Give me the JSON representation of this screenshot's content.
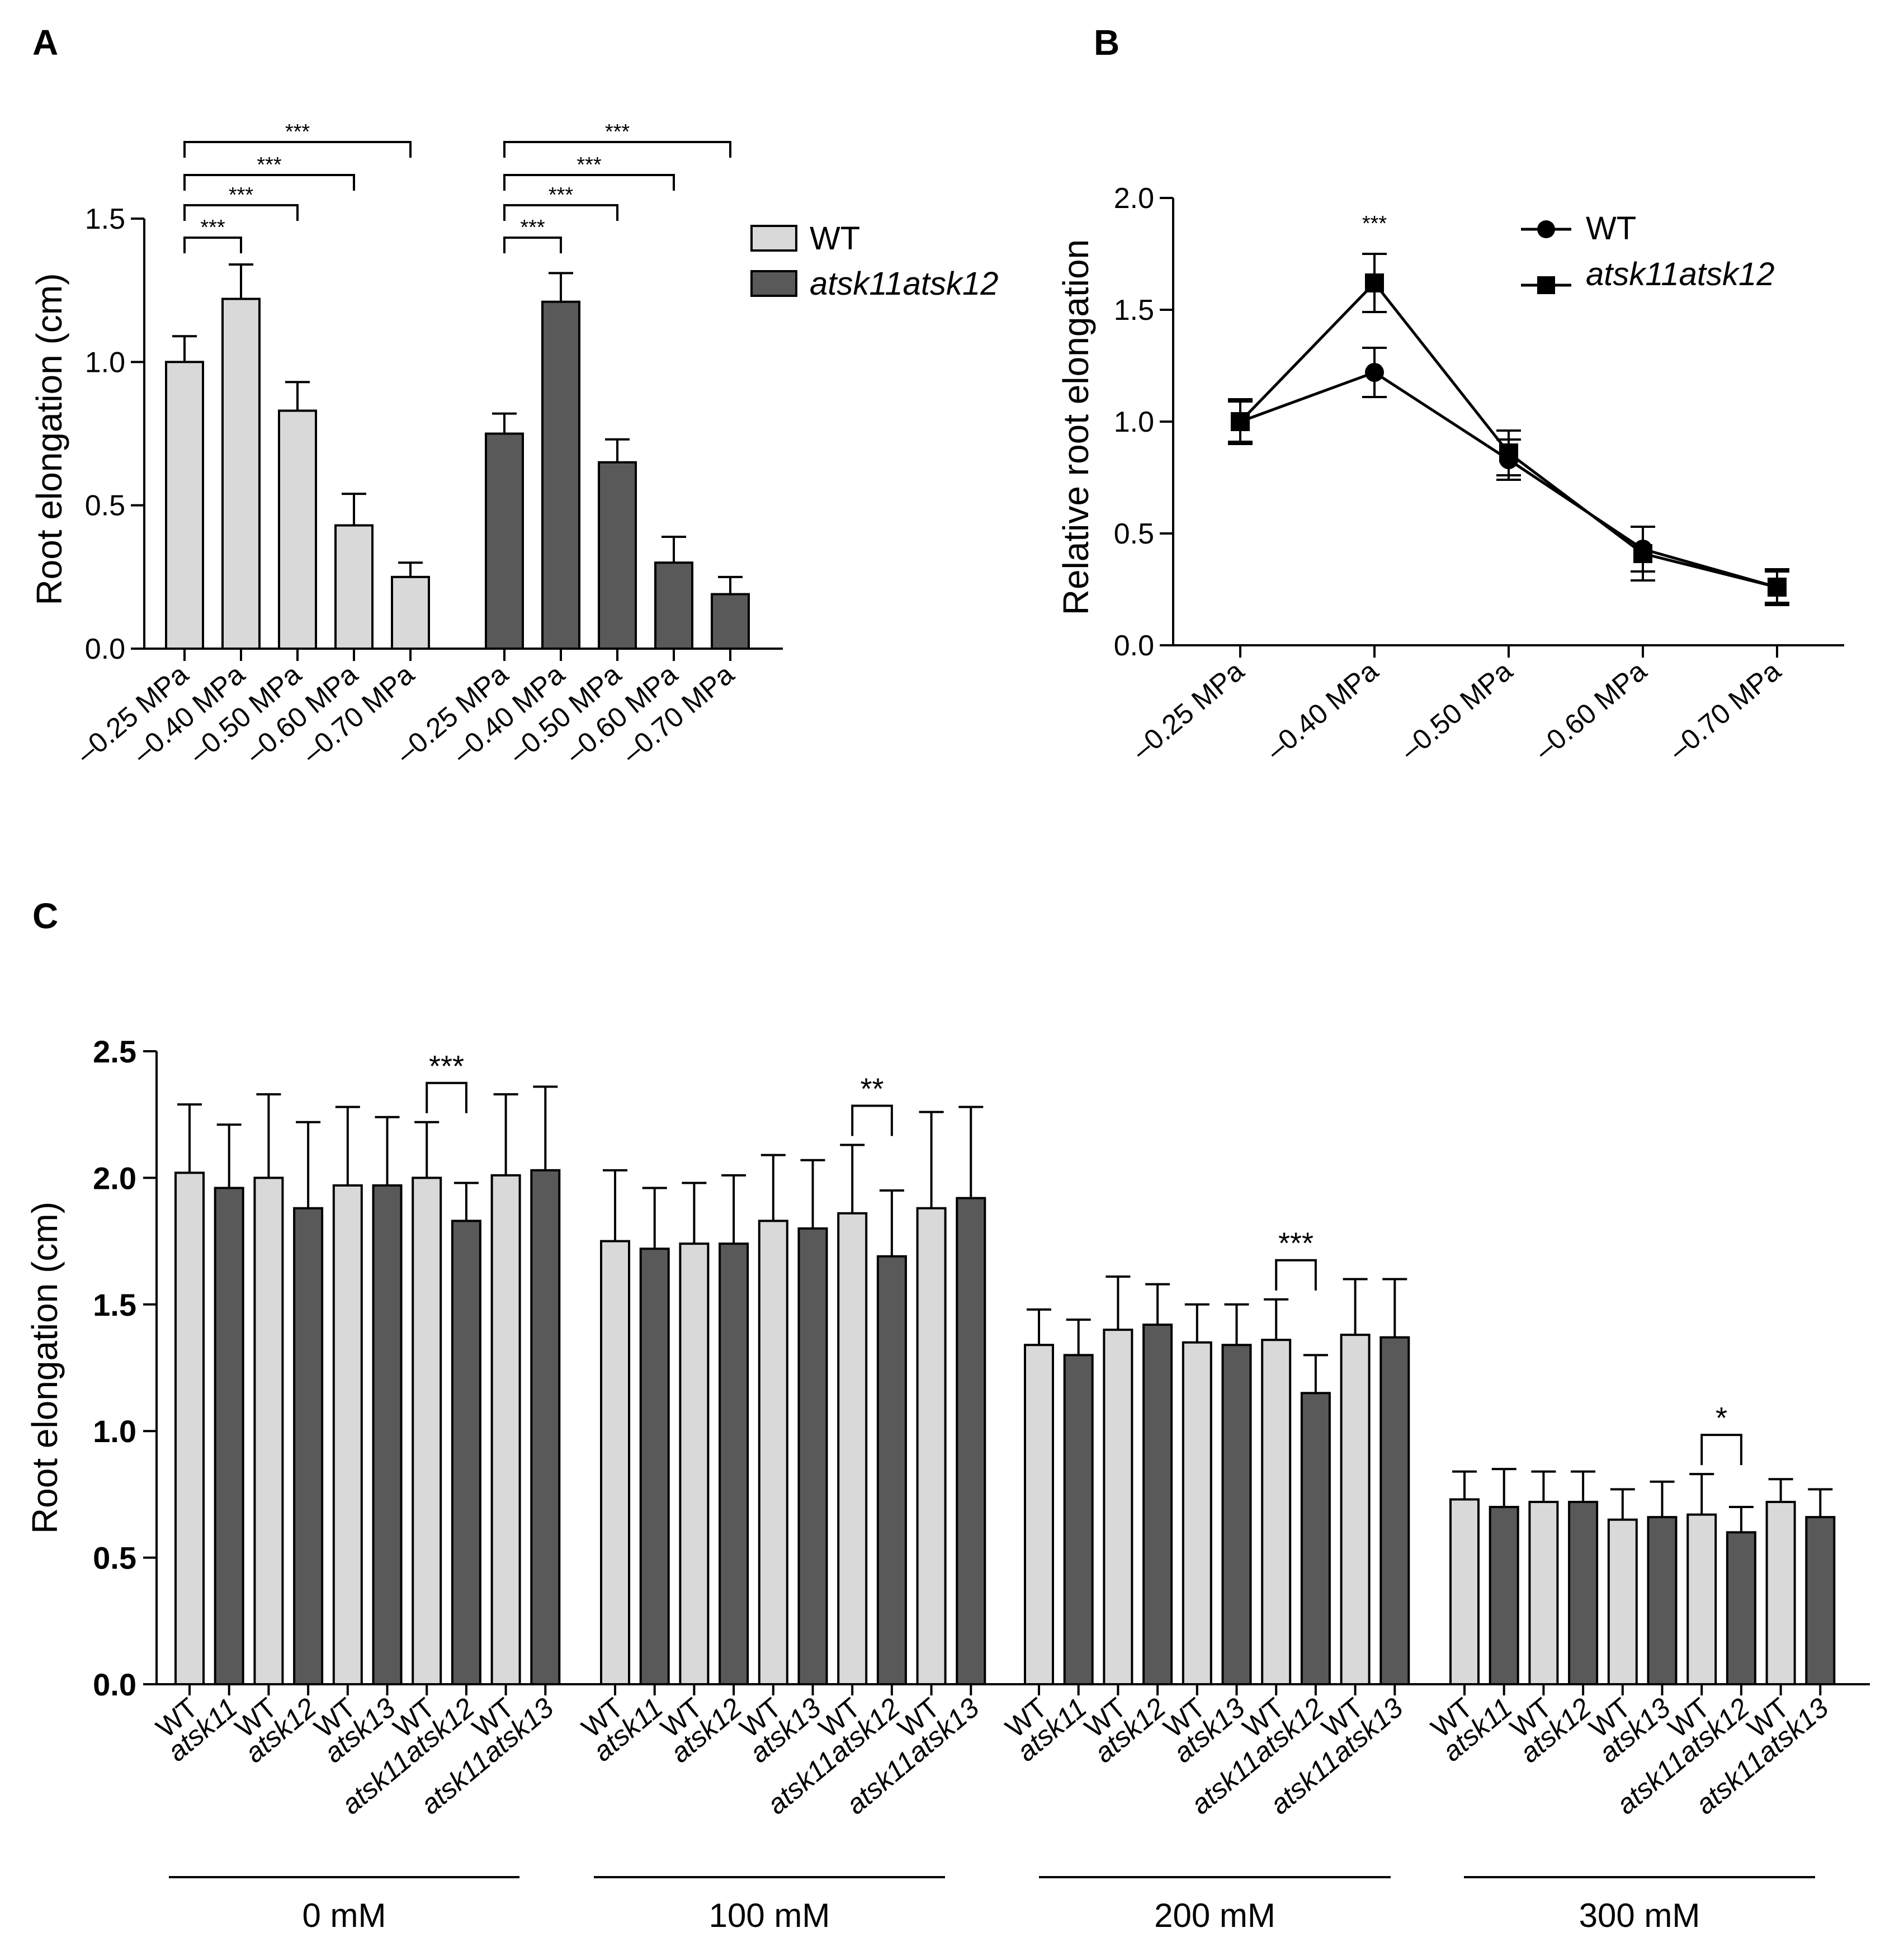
{
  "colors": {
    "wt": "#d9d9d9",
    "mutant": "#595959",
    "line": "#000000"
  },
  "panels": {
    "a": "A",
    "b": "B",
    "c": "C"
  },
  "chart_data": [
    {
      "id": "A",
      "type": "bar",
      "ylabel": "Root elongation (cm)",
      "ylim": [
        0,
        1.5
      ],
      "yticks": [
        "0.0",
        "0.5",
        "1.0",
        "1.5"
      ],
      "categories": [
        "​–0.25 MPa",
        "–0.40 MPa",
        "–0.50 MPa",
        "–0.60 MPa",
        "–0.70 MPa"
      ],
      "series": [
        {
          "name": "WT",
          "values": [
            1.0,
            1.22,
            0.83,
            0.43,
            0.25
          ],
          "errors": [
            0.09,
            0.12,
            0.1,
            0.11,
            0.05
          ]
        },
        {
          "name": "atsk11atsk12",
          "values": [
            0.75,
            1.21,
            0.65,
            0.3,
            0.19
          ],
          "errors": [
            0.07,
            0.1,
            0.08,
            0.09,
            0.06
          ]
        }
      ],
      "legend": [
        "WT",
        "atsk11atsk12"
      ],
      "significance": "***"
    },
    {
      "id": "B",
      "type": "line",
      "ylabel": "Relative root elongation",
      "ylim": [
        0,
        2.0
      ],
      "yticks": [
        "0.0",
        "0.5",
        "1.0",
        "1.5",
        "2.0"
      ],
      "categories": [
        "–0.25 MPa",
        "–0.40 MPa",
        "–0.50 MPa",
        "–0.60 MPa",
        "–0.70 MPa"
      ],
      "series": [
        {
          "name": "WT",
          "values": [
            1.0,
            1.22,
            0.83,
            0.43,
            0.26
          ],
          "errors": [
            0.09,
            0.11,
            0.09,
            0.1,
            0.07
          ]
        },
        {
          "name": "atsk11atsk12",
          "values": [
            1.0,
            1.62,
            0.86,
            0.41,
            0.26
          ],
          "errors": [
            0.1,
            0.13,
            0.1,
            0.12,
            0.08
          ]
        }
      ],
      "legend": [
        "WT",
        "atsk11atsk12"
      ],
      "significance": "***"
    },
    {
      "id": "C",
      "type": "bar",
      "ylabel": "Root elongation (cm)",
      "ylim": [
        0,
        2.5
      ],
      "yticks": [
        "0.0",
        "0.5",
        "1.0",
        "1.5",
        "2.0",
        "2.5"
      ],
      "bar_labels": [
        "WT",
        "atsk11",
        "WT",
        "atsk12",
        "WT",
        "atsk13",
        "WT",
        "atsk11atsk12",
        "WT",
        "atsk11atsk13"
      ],
      "groups": [
        {
          "name": "0 mM",
          "significance": "***",
          "values": [
            2.02,
            1.96,
            2.0,
            1.88,
            1.97,
            1.97,
            2.0,
            1.83,
            2.01,
            2.03
          ],
          "errors": [
            0.27,
            0.25,
            0.33,
            0.34,
            0.31,
            0.27,
            0.22,
            0.15,
            0.32,
            0.33
          ]
        },
        {
          "name": "100 mM",
          "significance": "**",
          "values": [
            1.75,
            1.72,
            1.74,
            1.74,
            1.83,
            1.8,
            1.86,
            1.69,
            1.88,
            1.92
          ],
          "errors": [
            0.28,
            0.24,
            0.24,
            0.27,
            0.26,
            0.27,
            0.27,
            0.26,
            0.38,
            0.36
          ]
        },
        {
          "name": "200 mM",
          "significance": "***",
          "values": [
            1.34,
            1.3,
            1.4,
            1.42,
            1.35,
            1.34,
            1.36,
            1.15,
            1.38,
            1.37
          ],
          "errors": [
            0.14,
            0.14,
            0.21,
            0.16,
            0.15,
            0.16,
            0.16,
            0.15,
            0.22,
            0.23
          ]
        },
        {
          "name": "300 mM",
          "significance": "*",
          "values": [
            0.73,
            0.7,
            0.72,
            0.72,
            0.65,
            0.66,
            0.67,
            0.6,
            0.72,
            0.66
          ],
          "errors": [
            0.11,
            0.15,
            0.12,
            0.12,
            0.12,
            0.14,
            0.16,
            0.1,
            0.09,
            0.11
          ]
        }
      ],
      "comparison": [
        "WT",
        "atsk11atsk12"
      ]
    }
  ]
}
